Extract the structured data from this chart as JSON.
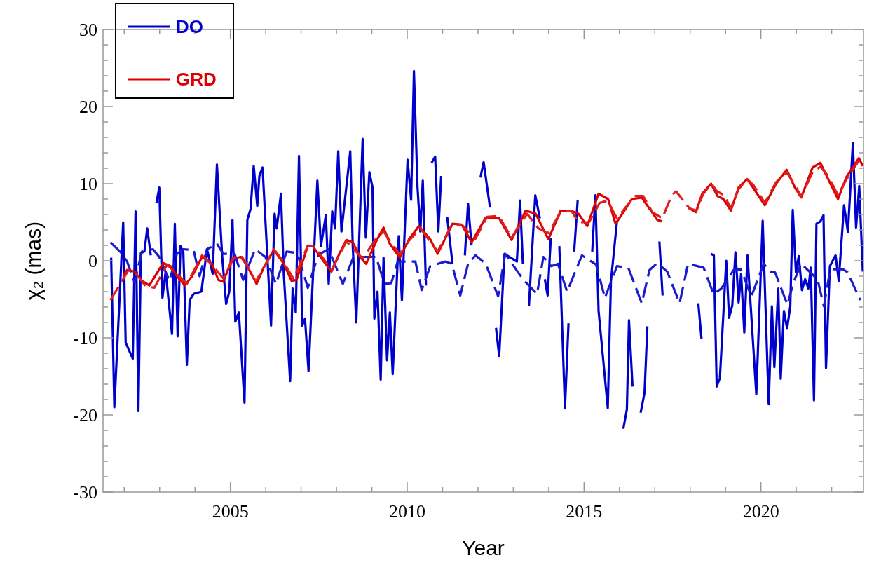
{
  "chart_data": {
    "type": "line",
    "xlabel": "Year",
    "ylabel": "χ₂ (mas)",
    "xlim": [
      2001.4,
      2022.9
    ],
    "ylim": [
      -30,
      30
    ],
    "xticks": [
      {
        "value": 2002,
        "label": null
      },
      {
        "value": 2003,
        "label": null
      },
      {
        "value": 2004,
        "label": null
      },
      2005,
      {
        "value": 2006,
        "label": null
      },
      {
        "value": 2007,
        "label": null
      },
      {
        "value": 2008,
        "label": null
      },
      {
        "value": 2009,
        "label": null
      },
      2010,
      {
        "value": 2011,
        "label": null
      },
      {
        "value": 2012,
        "label": null
      },
      {
        "value": 2013,
        "label": null
      },
      {
        "value": 2014,
        "label": null
      },
      2015,
      {
        "value": 2016,
        "label": null
      },
      {
        "value": 2017,
        "label": null
      },
      {
        "value": 2018,
        "label": null
      },
      {
        "value": 2019,
        "label": null
      },
      2020,
      {
        "value": 2021,
        "label": null
      },
      {
        "value": 2022,
        "label": null
      }
    ],
    "yticks": [
      -30,
      {
        "value": -28,
        "label": null
      },
      {
        "value": -26,
        "label": null
      },
      {
        "value": -24,
        "label": null
      },
      {
        "value": -22,
        "label": null
      },
      -20,
      {
        "value": -18,
        "label": null
      },
      {
        "value": -16,
        "label": null
      },
      {
        "value": -14,
        "label": null
      },
      {
        "value": -12,
        "label": null
      },
      -10,
      {
        "value": -8,
        "label": null
      },
      {
        "value": -6,
        "label": null
      },
      {
        "value": -4,
        "label": null
      },
      {
        "value": -2,
        "label": null
      },
      0,
      {
        "value": 2,
        "label": null
      },
      {
        "value": 4,
        "label": null
      },
      {
        "value": 6,
        "label": null
      },
      {
        "value": 8,
        "label": null
      },
      10,
      {
        "value": 12,
        "label": null
      },
      {
        "value": 14,
        "label": null
      },
      {
        "value": 16,
        "label": null
      },
      {
        "value": 18,
        "label": null
      },
      20,
      {
        "value": 22,
        "label": null
      },
      {
        "value": 24,
        "label": null
      },
      {
        "value": 26,
        "label": null
      },
      {
        "value": 28,
        "label": null
      },
      30
    ],
    "grid": false,
    "legend": "top left",
    "marker": "none",
    "series": [
      {
        "name": "DO",
        "color": "#0000cc",
        "line_style": "solid",
        "x": [
          2001.63,
          2001.72,
          2001.97,
          2002.04,
          2002.24,
          2002.32,
          2002.4,
          2002.47,
          2002.57,
          2002.65,
          2002.75,
          null,
          2002.91,
          2002.99,
          2003.08,
          2003.17,
          2003.35,
          2003.43,
          2003.51,
          2003.59,
          2003.67,
          2003.77,
          2003.85,
          2003.96,
          2004.18,
          2004.34,
          2004.5,
          2004.62,
          2004.77,
          2004.88,
          2004.97,
          2005.06,
          2005.14,
          2005.24,
          2005.4,
          2005.48,
          2005.57,
          2005.66,
          2005.76,
          2005.82,
          2005.91,
          2006.15,
          2006.25,
          2006.31,
          2006.43,
          2006.51,
          2006.69,
          2006.76,
          2006.85,
          2006.94,
          2007.03,
          2007.11,
          2007.21,
          2007.46,
          2007.56,
          2007.7,
          2007.78,
          2007.88,
          2007.96,
          2008.05,
          2008.14,
          2008.39,
          2008.46,
          2008.56,
          2008.74,
          2008.83,
          2008.93,
          2009.02,
          2009.07,
          2009.16,
          2009.25,
          2009.33,
          2009.43,
          2009.51,
          2009.59,
          2009.76,
          2009.85,
          2010.01,
          2010.11,
          2010.19,
          2010.29,
          2010.37,
          2010.44,
          2010.53,
          null,
          2010.69,
          2010.79,
          2010.88,
          2010.96,
          null,
          2011.13,
          2011.28,
          null,
          2011.63,
          2011.72,
          2011.82,
          null,
          2012.07,
          2012.16,
          2012.34,
          null,
          2012.51,
          2012.6,
          2012.75,
          2013.1,
          2013.19,
          2013.27,
          null,
          2013.44,
          2013.62,
          2013.75,
          null,
          2013.89,
          2013.97,
          2014.06,
          null,
          2014.3,
          2014.46,
          2014.56,
          null,
          2014.72,
          2014.82,
          null,
          2015.23,
          2015.32,
          2015.41,
          2015.67,
          2015.76,
          2015.93,
          null,
          2016.11,
          2016.21,
          2016.27,
          2016.37,
          null,
          2016.6,
          2016.71,
          2016.79,
          null,
          2017.13,
          2017.22,
          null,
          2018.23,
          2018.32,
          null,
          2018.59,
          2018.67,
          2018.75,
          2018.84,
          2019.02,
          2019.1,
          2019.19,
          2019.28,
          2019.37,
          2019.44,
          2019.53,
          2019.62,
          2019.87,
          2020.05,
          2020.22,
          2020.31,
          2020.38,
          2020.49,
          2020.56,
          2020.65,
          2020.74,
          2020.83,
          2020.9,
          2020.99,
          2021.07,
          2021.16,
          2021.25,
          2021.34,
          2021.41,
          2021.5,
          2021.57,
          2021.68,
          2021.77,
          2021.84,
          2021.95,
          2022.11,
          2022.2,
          2022.35,
          2022.46,
          2022.6,
          2022.69,
          2022.78,
          2022.88
        ],
        "values": [
          0.4,
          -19,
          5,
          -10.6,
          -12.7,
          6.4,
          -19.5,
          1,
          1.2,
          4.2,
          0.7,
          null,
          7.5,
          9.5,
          -4.8,
          -1.4,
          -9.5,
          4.8,
          -9.8,
          1.9,
          1.1,
          -13.5,
          -5.1,
          -4.3,
          -4,
          1.5,
          -1.7,
          12.5,
          0.5,
          -5.6,
          -4,
          5.3,
          -7.9,
          -6.7,
          -18.4,
          5.3,
          6.7,
          12.3,
          7.1,
          11,
          12.1,
          -8.4,
          6.1,
          4.2,
          8.7,
          -1.7,
          -15.6,
          -3.6,
          -6.7,
          13.6,
          -8.4,
          -7.5,
          -14.3,
          10.4,
          1.9,
          5.9,
          -3,
          6.4,
          4.2,
          14.2,
          3.8,
          14.2,
          1.9,
          -8,
          15.8,
          3,
          11.5,
          9.5,
          -7.5,
          -4,
          -15.4,
          0.4,
          -12.9,
          -6.7,
          -14.7,
          3.2,
          -5.1,
          13.1,
          7.9,
          24.6,
          9.6,
          3.8,
          10.4,
          -3.2,
          null,
          12.7,
          13.5,
          3.8,
          11,
          null,
          5.7,
          -0.4,
          null,
          0.7,
          7.4,
          2,
          null,
          10.8,
          12.8,
          6.9,
          null,
          -8.7,
          -12.4,
          0.9,
          -0.1,
          7.8,
          -0.4,
          null,
          -5.9,
          8.5,
          5.5,
          null,
          -2.4,
          -4.5,
          3,
          null,
          1.9,
          -19.1,
          -8.1,
          null,
          1.2,
          7.9,
          null,
          1.2,
          8.5,
          -6.5,
          -19.1,
          -2.6,
          5.1,
          null,
          -21.8,
          -19.3,
          -7.7,
          -16.3,
          null,
          -19.7,
          -17.1,
          -8.5,
          null,
          2.5,
          -4.5,
          null,
          -5.5,
          -10.1,
          null,
          0.9,
          0.7,
          -16.3,
          -15.2,
          0,
          -7.4,
          -5.8,
          1.1,
          -5.4,
          -1.7,
          -9.3,
          0.7,
          -17.3,
          5.2,
          -18.6,
          -5.9,
          -13.8,
          -3.6,
          -15.3,
          -6.5,
          -8.8,
          -5.9,
          6.6,
          -1.5,
          0.6,
          -3.8,
          -2.4,
          -3.6,
          -0.9,
          -18.1,
          4.8,
          5.1,
          5.9,
          -13.9,
          -0.7,
          0.7,
          -2.6,
          7.2,
          3.7,
          15.3,
          4.3,
          9.7,
          -1.4
        ]
      },
      {
        "color": "#1a1ad0",
        "line_style": "dashed",
        "x": [
          2001.61,
          2001.9,
          2002.08,
          2002.29,
          2002.5,
          2002.81,
          2002.99,
          2003.28,
          2003.49,
          2003.67,
          2003.96,
          2004.13,
          2004.34,
          2004.62,
          2004.8,
          2005.12,
          2005.36,
          2005.7,
          2005.99,
          2006.29,
          2006.59,
          2006.89,
          2007.19,
          2007.49,
          2007.78,
          2008.18,
          2008.48,
          2008.8,
          2009.12,
          2009.29,
          2009.41,
          2009.55,
          2009.73,
          2010.01,
          2010.23,
          2010.41,
          2010.65,
          2011.08,
          2011.26,
          2011.5,
          2011.72,
          2011.93,
          2012.22,
          2012.57,
          2012.77,
          2013.27,
          2013.67,
          2013.85,
          2014.07,
          2014.26,
          2014.52,
          2014.94,
          2015.34,
          2015.59,
          2015.93,
          2016.25,
          2016.63,
          2016.85,
          2017.07,
          2017.35,
          2017.7,
          2017.94,
          2018.38,
          2018.66,
          2018.88,
          2019.23,
          2019.43,
          2019.73,
          2020.08,
          2020.29,
          2020.4,
          2020.75,
          2020.92,
          2021.14,
          2021.6,
          2021.78,
          2021.96,
          2022.32,
          2022.45,
          2022.81
        ],
        "values": [
          2.4,
          1.1,
          -0.1,
          -2.8,
          1.2,
          1.5,
          0.5,
          -2.6,
          0.9,
          1.5,
          1.4,
          -2,
          1.5,
          2.2,
          0.9,
          0.9,
          -2.5,
          1.5,
          0.5,
          -3,
          1.2,
          1,
          -3.5,
          0.8,
          1.5,
          -3,
          0.5,
          0.5,
          0.5,
          -2,
          -3,
          -2.9,
          -0.1,
          -0.1,
          -0.1,
          -3.8,
          -0.7,
          -0.1,
          -0.4,
          -4.5,
          -0.4,
          0.7,
          -0.4,
          -4.6,
          0.9,
          -2.4,
          -4.3,
          0.5,
          -0.7,
          -0.4,
          -4,
          0.7,
          -0.5,
          -4.8,
          -0.7,
          -0.9,
          -5.5,
          -1.2,
          -0.3,
          -1.4,
          -5.5,
          -0.4,
          -0.9,
          -4.3,
          -3.6,
          -1.2,
          -1.1,
          -4.6,
          -0.4,
          -1.5,
          -1.5,
          -5.7,
          -2.8,
          -0.4,
          -2.4,
          -5.9,
          -1.1,
          -1.1,
          -1.5,
          -5.1
        ]
      },
      {
        "name": "GRD",
        "color": "#dd0000",
        "line_style": "solid",
        "x": [
          2001.97,
          2002.08,
          2002.29,
          2002.5,
          2002.71,
          2003.1,
          2003.31,
          2003.49,
          2003.71,
          2003.92,
          2004.2,
          2004.48,
          2004.66,
          2004.8,
          2005.06,
          2005.3,
          2005.48,
          2005.74,
          2005.94,
          2006.23,
          2006.51,
          2006.73,
          2006.87,
          2007.19,
          2007.33,
          2007.64,
          2007.86,
          2008.08,
          2008.28,
          2008.46,
          2008.66,
          2008.84,
          2009.12,
          2009.33,
          2009.51,
          2009.79,
          2010.05,
          2010.33,
          2010.65,
          2010.86,
          2011.28,
          2011.54,
          2011.82,
          2012.22,
          2012.6,
          2012.95,
          2013.35,
          2013.63,
          2013.99,
          2014.34,
          2014.62,
          2014.84,
          2015.09,
          2015.41,
          2015.68,
          2015.89,
          2016.17,
          2016.35,
          2016.63,
          2017.07,
          2017.21,
          null,
          2017.94,
          2018.16,
          2018.34,
          2018.59,
          2018.77,
          2018.94,
          2019.15,
          2019.37,
          2019.61,
          2019.79,
          2020.11,
          2020.43,
          2020.73,
          2020.96,
          2021.14,
          2021.46,
          2021.68,
          2021.9,
          2022.18,
          2022.41,
          2022.77,
          2022.88
        ],
        "values": [
          -2,
          -1.2,
          -1.4,
          -2.6,
          -3.2,
          -0.3,
          -0.7,
          -2,
          -3.2,
          -2,
          0.5,
          -0.4,
          -2.5,
          -2.7,
          0.3,
          0.5,
          -0.7,
          -3,
          -0.9,
          1.4,
          -0.4,
          -2.6,
          -2.5,
          1.9,
          1.9,
          -0.1,
          -1.4,
          0.9,
          2.7,
          2.4,
          0.5,
          -0.4,
          2.5,
          4.3,
          2.2,
          0.4,
          2.8,
          4.5,
          2.8,
          0.9,
          4.8,
          4.7,
          2.4,
          5.6,
          5.5,
          2.7,
          6.5,
          6.1,
          2.8,
          6.5,
          6.5,
          6.1,
          4.5,
          8.7,
          8,
          4.8,
          6.7,
          8,
          8.2,
          5.3,
          5.1,
          null,
          6.9,
          6.3,
          8.7,
          10,
          8.4,
          8,
          6.5,
          9.5,
          10.6,
          9.4,
          7.2,
          10,
          11.8,
          9.5,
          8.2,
          12.1,
          12.7,
          10.6,
          8,
          10.8,
          13.3,
          12.3
        ]
      },
      {
        "color": "#e01e1e",
        "line_style": "dashed",
        "x": [
          2001.61,
          2001.94,
          2002.12,
          2002.32,
          2002.61,
          2002.85,
          2003.21,
          2003.51,
          2003.77,
          2004.2,
          2004.5,
          2004.8,
          2005.1,
          2005.32,
          2005.72,
          2006.23,
          2006.51,
          2006.79,
          2007.19,
          2007.39,
          2007.86,
          2008.28,
          2008.74,
          2009.11,
          2009.33,
          2009.79,
          2010.05,
          2010.37,
          2010.86,
          2011.28,
          2011.56,
          2011.92,
          2012.26,
          2012.59,
          2012.95,
          2013.39,
          2013.71,
          2013.99,
          2014.34,
          2014.64,
          2014.84,
          2015.14,
          2015.44,
          2015.66,
          2015.93,
          2016.19,
          2016.43,
          2016.67,
          2016.93,
          2017.21,
          2017.48,
          2017.6,
          2017.98,
          2018.18,
          2018.36,
          2018.6,
          2018.76,
          2018.96,
          2019.15,
          2019.37,
          2019.61,
          2019.79,
          2020.11,
          2020.43,
          2020.73,
          2020.96,
          2021.14,
          2021.46,
          2021.68,
          2021.9,
          2022.18,
          2022.41,
          2022.77
        ],
        "values": [
          -5.1,
          -2.6,
          -1.2,
          -1.6,
          -3.3,
          -3.5,
          -0.5,
          -1.8,
          -3,
          0.7,
          -0.6,
          -2.3,
          0.4,
          0.6,
          -2.7,
          1.5,
          -0.2,
          -2.4,
          2,
          1.8,
          -1.2,
          2.5,
          0.3,
          2.8,
          3.8,
          0.8,
          2.6,
          4.2,
          1.2,
          4.8,
          4.6,
          2.8,
          5.7,
          5.8,
          3,
          6.1,
          4.2,
          3.6,
          6.3,
          6.5,
          5,
          5,
          7.5,
          7.8,
          5.5,
          7,
          8.4,
          8.4,
          6.3,
          5.5,
          8.5,
          9,
          6.8,
          6.5,
          8.6,
          10,
          9,
          8.5,
          6.8,
          9.3,
          10.6,
          9.8,
          7.5,
          10.2,
          11.5,
          9.8,
          8.3,
          11.5,
          12.2,
          11,
          8.5,
          10.5,
          13
        ]
      }
    ]
  }
}
